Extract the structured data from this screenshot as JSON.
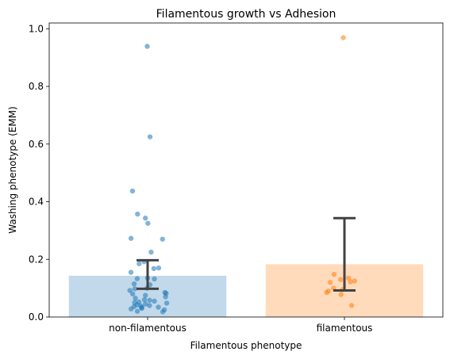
{
  "chart_data": {
    "type": "bar",
    "title": "Filamentous growth vs Adhesion",
    "xlabel": "Filamentous phenotype",
    "ylabel": "Washing phenotype (EMM)",
    "ylim": [
      0,
      1.02
    ],
    "yticks": [
      "0.0",
      "0.2",
      "0.4",
      "0.6",
      "0.8",
      "1.0"
    ],
    "grid": false,
    "categories": [
      "non-filamentous",
      "filamentous"
    ],
    "colors": {
      "bar_fill": [
        "#1f77b4",
        "#ff7f0e"
      ],
      "errorbar": "#424242"
    },
    "values": [
      0.143,
      0.183
    ],
    "error_bars": [
      {
        "low": 0.098,
        "high": 0.197
      },
      {
        "low": 0.092,
        "high": 0.343
      }
    ],
    "points": [
      {
        "category": "non-filamentous",
        "y": [
          0.939,
          0.625,
          0.437,
          0.357,
          0.343,
          0.325,
          0.273,
          0.27,
          0.225,
          0.192,
          0.185,
          0.17,
          0.168,
          0.155,
          0.135,
          0.133,
          0.132,
          0.115,
          0.112,
          0.1,
          0.098,
          0.092,
          0.085,
          0.082,
          0.08,
          0.075,
          0.07,
          0.065,
          0.06,
          0.058,
          0.055,
          0.052,
          0.05,
          0.048,
          0.045,
          0.042,
          0.04,
          0.038,
          0.036,
          0.034,
          0.033,
          0.03,
          0.028,
          0.025,
          0.02,
          0.018
        ]
      },
      {
        "category": "filamentous",
        "y": [
          0.969,
          0.148,
          0.135,
          0.13,
          0.125,
          0.122,
          0.12,
          0.1,
          0.095,
          0.09,
          0.085,
          0.078,
          0.04
        ]
      }
    ]
  }
}
